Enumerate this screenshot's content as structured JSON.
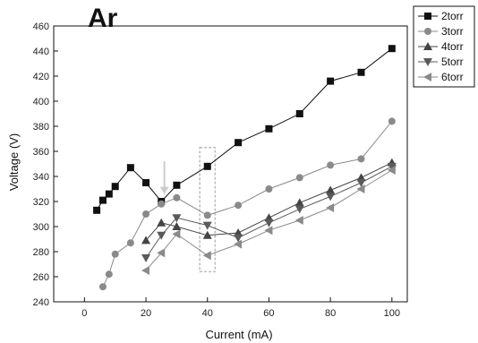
{
  "chart_data": {
    "type": "line",
    "title": "Ar",
    "xlabel": "Current (mA)",
    "ylabel": "Voltage (V)",
    "xlim": [
      -10,
      105
    ],
    "ylim": [
      240,
      460
    ],
    "xticks": [
      0,
      20,
      40,
      60,
      80,
      100
    ],
    "yticks": [
      240,
      260,
      280,
      300,
      320,
      340,
      360,
      380,
      400,
      420,
      440,
      460
    ],
    "grid": false,
    "legend_position": "top-right",
    "series": [
      {
        "name": "2torr",
        "marker": "square",
        "color": "#111111",
        "x": [
          4,
          6,
          8,
          10,
          15,
          20,
          25,
          30,
          40,
          50,
          60,
          70,
          80,
          90,
          100
        ],
        "y": [
          313,
          321,
          326,
          332,
          347,
          335,
          320,
          333,
          348,
          367,
          378,
          390,
          416,
          423,
          442
        ]
      },
      {
        "name": "3torr",
        "marker": "circle",
        "color": "#8a8a8a",
        "x": [
          6,
          8,
          10,
          15,
          20,
          25,
          30,
          40,
          50,
          60,
          70,
          80,
          90,
          100
        ],
        "y": [
          252,
          262,
          278,
          287,
          310,
          318,
          323,
          309,
          317,
          330,
          339,
          349,
          354,
          384
        ]
      },
      {
        "name": "4torr",
        "marker": "triangle-up",
        "color": "#444444",
        "x": [
          20,
          25,
          30,
          40,
          50,
          60,
          70,
          80,
          90,
          100
        ],
        "y": [
          289,
          303,
          300,
          293,
          295,
          307,
          319,
          329,
          339,
          351
        ]
      },
      {
        "name": "5torr",
        "marker": "triangle-down",
        "color": "#5a5a5a",
        "x": [
          20,
          25,
          30,
          40,
          50,
          60,
          70,
          80,
          90,
          100
        ],
        "y": [
          275,
          293,
          307,
          301,
          291,
          303,
          314,
          324,
          335,
          348
        ]
      },
      {
        "name": "6torr",
        "marker": "triangle-left",
        "color": "#8a8a8a",
        "x": [
          20,
          25,
          30,
          40,
          50,
          60,
          70,
          80,
          90,
          100
        ],
        "y": [
          265,
          279,
          294,
          277,
          286,
          297,
          305,
          315,
          330,
          345
        ]
      }
    ],
    "annotations": [
      {
        "type": "arrow-down",
        "x": 26,
        "y_top": 352,
        "y_tip": 326,
        "color": "#cccccc"
      },
      {
        "type": "dashed-rect",
        "x_min": 37.5,
        "x_max": 42.5,
        "y_min": 264,
        "y_max": 363,
        "color": "#bbbbbb"
      }
    ]
  }
}
